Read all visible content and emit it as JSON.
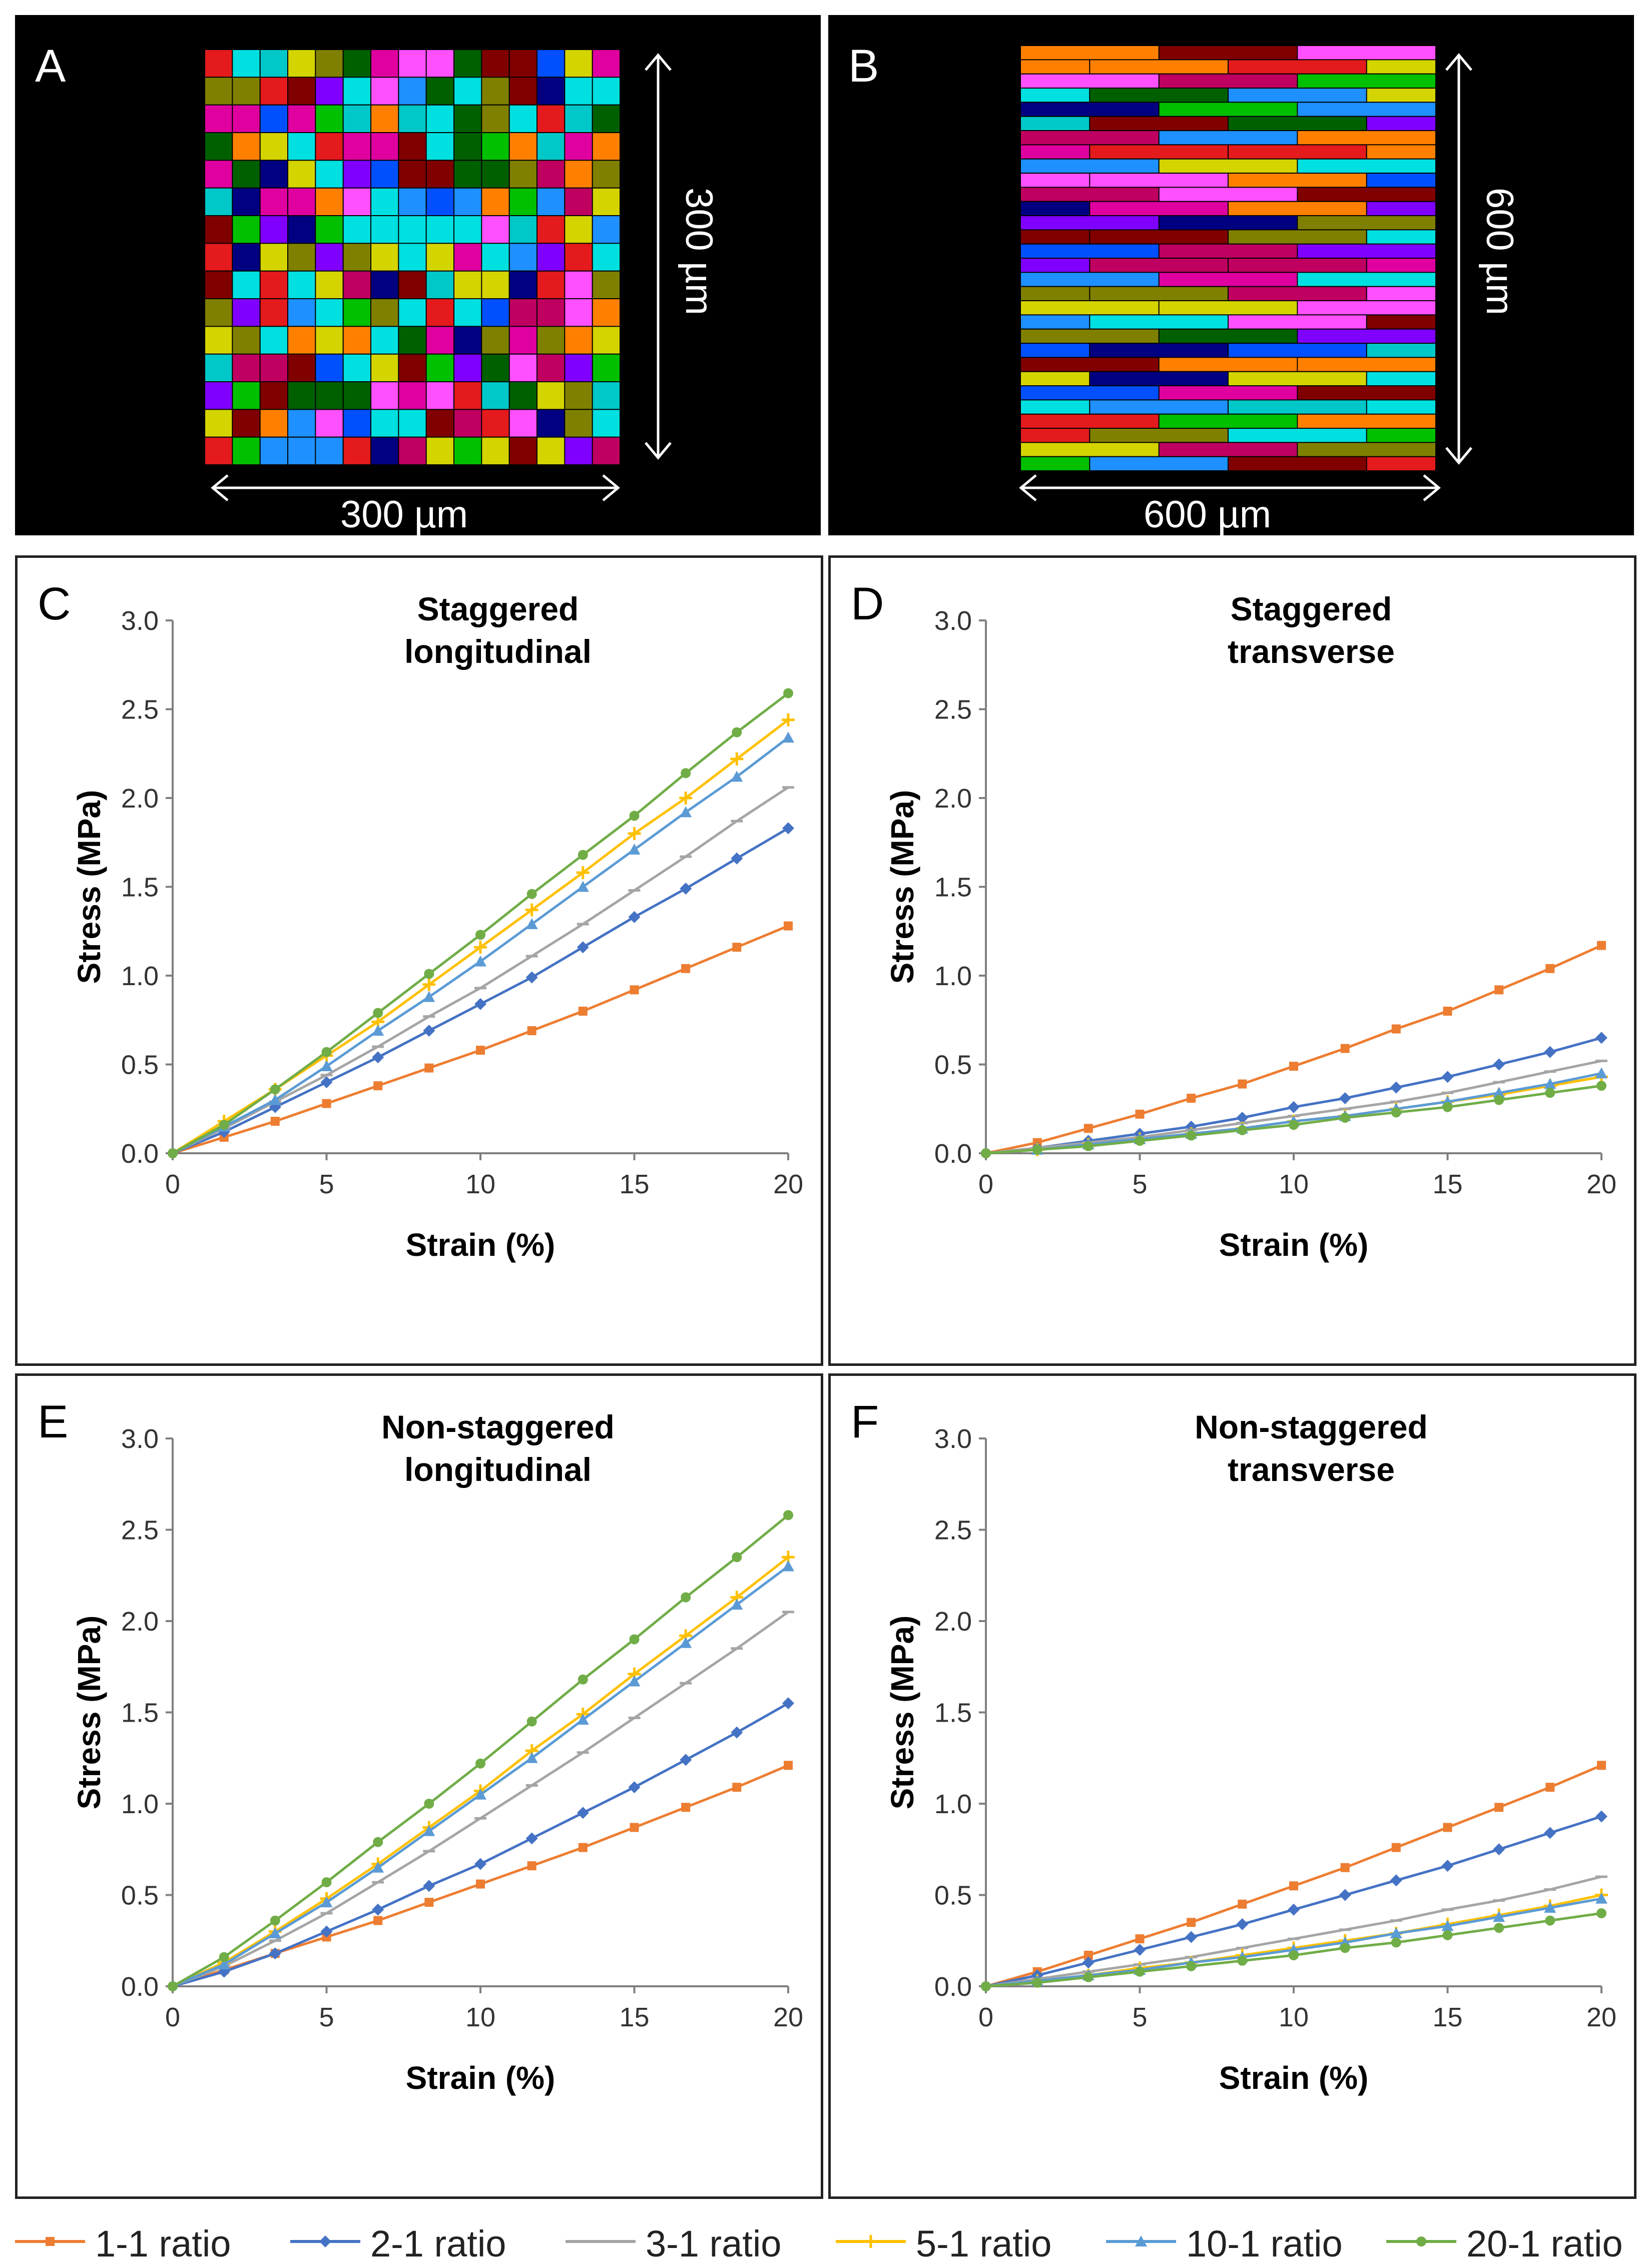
{
  "panels": {
    "a": {
      "letter": "A",
      "width_label": "300 µm",
      "height_label": "300 µm"
    },
    "b": {
      "letter": "B",
      "width_label": "600 µm",
      "height_label": "600 µm"
    }
  },
  "colors": {
    "series": [
      "#ED7D31",
      "#4472C4",
      "#A5A5A5",
      "#FFC000",
      "#5B9BD5",
      "#70AD47"
    ],
    "cells": [
      "#e41a1c",
      "#1e90ff",
      "#00c000",
      "#d4d400",
      "#00c8c8",
      "#e000a0",
      "#ff8000",
      "#8000ff",
      "#006000",
      "#000080",
      "#800000",
      "#808000",
      "#ff50ff",
      "#0050ff",
      "#00e0e0",
      "#c00060"
    ]
  },
  "legend": [
    {
      "label": "1-1 ratio",
      "marker": "square"
    },
    {
      "label": "2-1 ratio",
      "marker": "diamond"
    },
    {
      "label": "3-1 ratio",
      "marker": "dash"
    },
    {
      "label": "5-1 ratio",
      "marker": "plus"
    },
    {
      "label": "10-1 ratio",
      "marker": "triangle"
    },
    {
      "label": "20-1 ratio",
      "marker": "circle"
    }
  ],
  "chart_data": [
    {
      "id": "C",
      "letter": "C",
      "type": "line",
      "title_lines": [
        "Staggered",
        "longitudinal"
      ],
      "xlabel": "Strain (%)",
      "ylabel": "Stress (MPa)",
      "xlim": [
        0,
        20
      ],
      "ylim": [
        0,
        3
      ],
      "xticks": [
        0,
        5,
        10,
        15,
        20
      ],
      "yticks": [
        0.0,
        0.5,
        1.0,
        1.5,
        2.0,
        2.5,
        3.0
      ],
      "x": [
        0,
        1.67,
        3.33,
        5,
        6.67,
        8.33,
        10,
        11.67,
        13.33,
        15,
        16.67,
        18.33,
        20
      ],
      "series": [
        {
          "name": "1-1 ratio",
          "values": [
            0,
            0.09,
            0.18,
            0.28,
            0.38,
            0.48,
            0.58,
            0.69,
            0.8,
            0.92,
            1.04,
            1.16,
            1.28
          ]
        },
        {
          "name": "2-1 ratio",
          "values": [
            0,
            0.12,
            0.26,
            0.4,
            0.54,
            0.69,
            0.84,
            0.99,
            1.16,
            1.33,
            1.49,
            1.66,
            1.83
          ]
        },
        {
          "name": "3-1 ratio",
          "values": [
            0,
            0.14,
            0.29,
            0.44,
            0.6,
            0.77,
            0.93,
            1.11,
            1.29,
            1.48,
            1.67,
            1.87,
            2.06
          ]
        },
        {
          "name": "5-1 ratio",
          "values": [
            0,
            0.18,
            0.36,
            0.55,
            0.74,
            0.95,
            1.16,
            1.37,
            1.58,
            1.8,
            2.0,
            2.22,
            2.44
          ]
        },
        {
          "name": "10-1 ratio",
          "values": [
            0,
            0.15,
            0.3,
            0.49,
            0.69,
            0.88,
            1.08,
            1.29,
            1.5,
            1.71,
            1.92,
            2.12,
            2.34
          ]
        },
        {
          "name": "20-1 ratio",
          "values": [
            0,
            0.16,
            0.36,
            0.57,
            0.79,
            1.01,
            1.23,
            1.46,
            1.68,
            1.9,
            2.14,
            2.37,
            2.59
          ]
        }
      ]
    },
    {
      "id": "D",
      "letter": "D",
      "type": "line",
      "title_lines": [
        "Staggered",
        "transverse"
      ],
      "xlabel": "Strain (%)",
      "ylabel": "Stress (MPa)",
      "xlim": [
        0,
        20
      ],
      "ylim": [
        0,
        3
      ],
      "xticks": [
        0,
        5,
        10,
        15,
        20
      ],
      "yticks": [
        0.0,
        0.5,
        1.0,
        1.5,
        2.0,
        2.5,
        3.0
      ],
      "x": [
        0,
        1.67,
        3.33,
        5,
        6.67,
        8.33,
        10,
        11.67,
        13.33,
        15,
        16.67,
        18.33,
        20
      ],
      "series": [
        {
          "name": "1-1 ratio",
          "values": [
            0,
            0.06,
            0.14,
            0.22,
            0.31,
            0.39,
            0.49,
            0.59,
            0.7,
            0.8,
            0.92,
            1.04,
            1.17
          ]
        },
        {
          "name": "2-1 ratio",
          "values": [
            0,
            0.03,
            0.07,
            0.11,
            0.15,
            0.2,
            0.26,
            0.31,
            0.37,
            0.43,
            0.5,
            0.57,
            0.65
          ]
        },
        {
          "name": "3-1 ratio",
          "values": [
            0,
            0.03,
            0.06,
            0.09,
            0.13,
            0.17,
            0.21,
            0.25,
            0.29,
            0.34,
            0.4,
            0.46,
            0.52
          ]
        },
        {
          "name": "5-1 ratio",
          "values": [
            0,
            0.02,
            0.05,
            0.08,
            0.11,
            0.14,
            0.18,
            0.21,
            0.25,
            0.29,
            0.33,
            0.38,
            0.43
          ]
        },
        {
          "name": "10-1 ratio",
          "values": [
            0,
            0.02,
            0.05,
            0.08,
            0.11,
            0.14,
            0.18,
            0.21,
            0.25,
            0.29,
            0.34,
            0.39,
            0.45
          ]
        },
        {
          "name": "20-1 ratio",
          "values": [
            0,
            0.02,
            0.04,
            0.07,
            0.1,
            0.13,
            0.16,
            0.2,
            0.23,
            0.26,
            0.3,
            0.34,
            0.38
          ]
        }
      ]
    },
    {
      "id": "E",
      "letter": "E",
      "type": "line",
      "title_lines": [
        "Non-staggered",
        "longitudinal"
      ],
      "xlabel": "Strain (%)",
      "ylabel": "Stress (MPa)",
      "xlim": [
        0,
        20
      ],
      "ylim": [
        0,
        3
      ],
      "xticks": [
        0,
        5,
        10,
        15,
        20
      ],
      "yticks": [
        0.0,
        0.5,
        1.0,
        1.5,
        2.0,
        2.5,
        3.0
      ],
      "x": [
        0,
        1.67,
        3.33,
        5,
        6.67,
        8.33,
        10,
        11.67,
        13.33,
        15,
        16.67,
        18.33,
        20
      ],
      "series": [
        {
          "name": "1-1 ratio",
          "values": [
            0,
            0.09,
            0.18,
            0.27,
            0.36,
            0.46,
            0.56,
            0.66,
            0.76,
            0.87,
            0.98,
            1.09,
            1.21
          ]
        },
        {
          "name": "2-1 ratio",
          "values": [
            0,
            0.08,
            0.18,
            0.3,
            0.42,
            0.55,
            0.67,
            0.81,
            0.95,
            1.09,
            1.24,
            1.39,
            1.55
          ]
        },
        {
          "name": "3-1 ratio",
          "values": [
            0,
            0.11,
            0.25,
            0.4,
            0.57,
            0.74,
            0.92,
            1.1,
            1.28,
            1.47,
            1.66,
            1.85,
            2.05
          ]
        },
        {
          "name": "5-1 ratio",
          "values": [
            0,
            0.13,
            0.3,
            0.48,
            0.67,
            0.87,
            1.07,
            1.29,
            1.49,
            1.71,
            1.92,
            2.13,
            2.35
          ]
        },
        {
          "name": "10-1 ratio",
          "values": [
            0,
            0.12,
            0.29,
            0.46,
            0.65,
            0.85,
            1.05,
            1.25,
            1.46,
            1.67,
            1.88,
            2.09,
            2.3
          ]
        },
        {
          "name": "20-1 ratio",
          "values": [
            0,
            0.16,
            0.36,
            0.57,
            0.79,
            1.0,
            1.22,
            1.45,
            1.68,
            1.9,
            2.13,
            2.35,
            2.58
          ]
        }
      ]
    },
    {
      "id": "F",
      "letter": "F",
      "type": "line",
      "title_lines": [
        "Non-staggered",
        "transverse"
      ],
      "xlabel": "Strain (%)",
      "ylabel": "Stress (MPa)",
      "xlim": [
        0,
        20
      ],
      "ylim": [
        0,
        3
      ],
      "xticks": [
        0,
        5,
        10,
        15,
        20
      ],
      "yticks": [
        0.0,
        0.5,
        1.0,
        1.5,
        2.0,
        2.5,
        3.0
      ],
      "x": [
        0,
        1.67,
        3.33,
        5,
        6.67,
        8.33,
        10,
        11.67,
        13.33,
        15,
        16.67,
        18.33,
        20
      ],
      "series": [
        {
          "name": "1-1 ratio",
          "values": [
            0,
            0.08,
            0.17,
            0.26,
            0.35,
            0.45,
            0.55,
            0.65,
            0.76,
            0.87,
            0.98,
            1.09,
            1.21
          ]
        },
        {
          "name": "2-1 ratio",
          "values": [
            0,
            0.06,
            0.13,
            0.2,
            0.27,
            0.34,
            0.42,
            0.5,
            0.58,
            0.66,
            0.75,
            0.84,
            0.93
          ]
        },
        {
          "name": "3-1 ratio",
          "values": [
            0,
            0.04,
            0.08,
            0.12,
            0.16,
            0.21,
            0.26,
            0.31,
            0.36,
            0.42,
            0.47,
            0.53,
            0.6
          ]
        },
        {
          "name": "5-1 ratio",
          "values": [
            0,
            0.03,
            0.06,
            0.1,
            0.13,
            0.17,
            0.21,
            0.25,
            0.29,
            0.34,
            0.39,
            0.44,
            0.5
          ]
        },
        {
          "name": "10-1 ratio",
          "values": [
            0,
            0.03,
            0.06,
            0.09,
            0.13,
            0.16,
            0.2,
            0.24,
            0.29,
            0.33,
            0.38,
            0.43,
            0.48
          ]
        },
        {
          "name": "20-1 ratio",
          "values": [
            0,
            0.02,
            0.05,
            0.08,
            0.11,
            0.14,
            0.17,
            0.21,
            0.24,
            0.28,
            0.32,
            0.36,
            0.4
          ]
        }
      ]
    }
  ]
}
